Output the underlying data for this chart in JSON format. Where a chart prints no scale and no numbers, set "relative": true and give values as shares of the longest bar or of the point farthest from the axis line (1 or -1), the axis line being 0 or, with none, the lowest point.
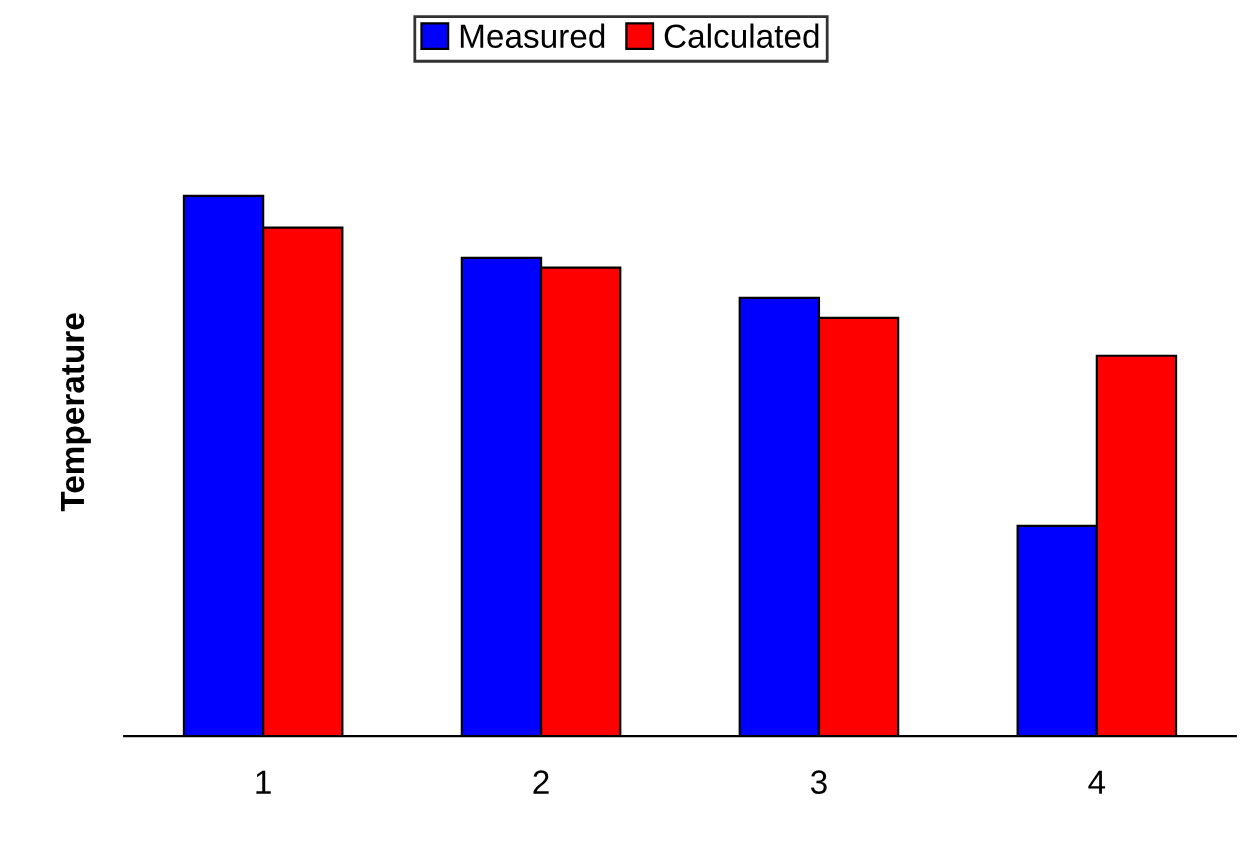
{
  "chart_data": {
    "type": "bar",
    "ylabel": "Temperature",
    "categories": [
      "1",
      "2",
      "3",
      "4"
    ],
    "relative": true,
    "legend": "top",
    "grid": false,
    "series": [
      {
        "name": "Measured",
        "color": "#0000ff",
        "values": [
          1,
          0.885,
          0.811,
          0.389
        ]
      },
      {
        "name": "Calculated",
        "color": "#ff0000",
        "values": [
          0.941,
          0.867,
          0.774,
          0.704
        ]
      }
    ]
  }
}
